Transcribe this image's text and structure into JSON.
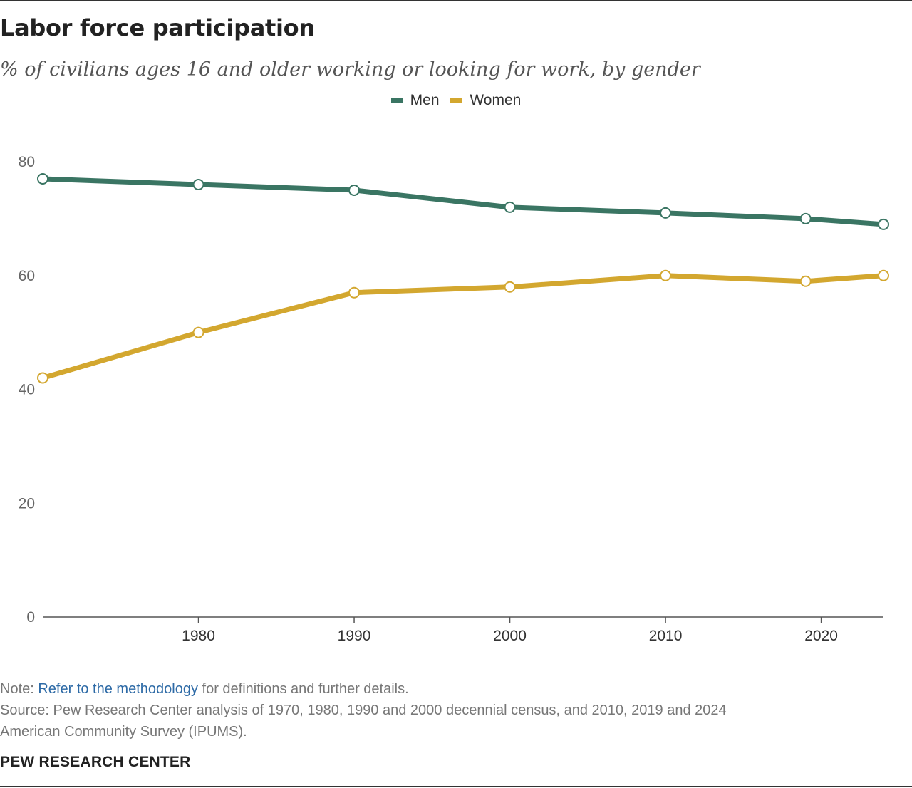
{
  "title": "Labor force participation",
  "subtitle": "% of civilians ages 16 and older working or looking for work, by gender",
  "note": {
    "prefix": "Note: ",
    "link_text": "Refer to the methodology",
    "suffix": " for definitions and further details."
  },
  "source_line1": "Source: Pew Research Center analysis of 1970, 1980, 1990 and 2000 decennial census, and 2010, 2019 and 2024",
  "source_line2": "American Community Survey (IPUMS).",
  "footer": "PEW RESEARCH CENTER",
  "colors": {
    "men": "#3a7563",
    "women": "#d3a72f",
    "link": "#2d6aa6"
  },
  "chart_data": {
    "type": "line",
    "title": "Labor force participation",
    "subtitle": "% of civilians ages 16 and older working or looking for work, by gender",
    "xlabel": "",
    "ylabel": "",
    "x": [
      1970,
      1980,
      1990,
      2000,
      2010,
      2019,
      2024
    ],
    "xlim": [
      1970,
      2024
    ],
    "x_ticks": [
      1980,
      1990,
      2000,
      2010,
      2020
    ],
    "ylim": [
      0,
      80
    ],
    "y_ticks": [
      0,
      20,
      40,
      60,
      80
    ],
    "grid": false,
    "legend_position": "top-center",
    "series": [
      {
        "name": "Men",
        "color": "#3a7563",
        "values": [
          77,
          76,
          75,
          72,
          71,
          70,
          69
        ]
      },
      {
        "name": "Women",
        "color": "#d3a72f",
        "values": [
          42,
          50,
          57,
          58,
          60,
          59,
          60
        ]
      }
    ]
  }
}
